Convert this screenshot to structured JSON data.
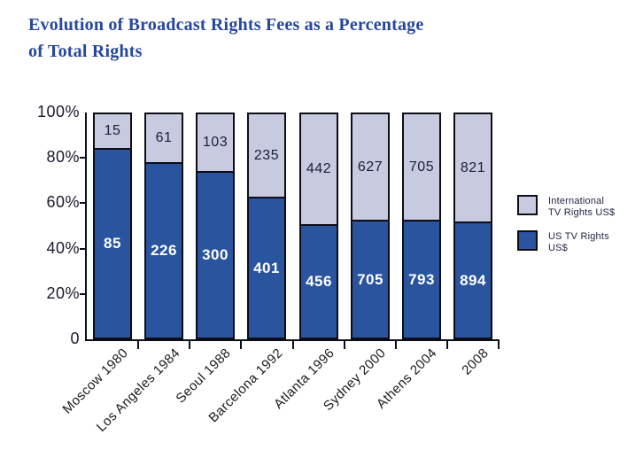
{
  "page": {
    "title_lines": [
      "Evolution of Broadcast Rights Fees as a Percentage",
      "of Total Rights"
    ],
    "title_color": "#27479e",
    "background_color": "#ffffff"
  },
  "chart_data": {
    "type": "bar",
    "variant": "100-percent-stacked-column",
    "title": "Evolution of Broadcast Rights Fees as a Percentage of Total Rights",
    "categories": [
      "Moscow 1980",
      "Los Angeles 1984",
      "Seoul 1988",
      "Barcelona 1992",
      "Atlanta 1996",
      "Sydney 2000",
      "Athens 2004",
      "2008"
    ],
    "series": [
      {
        "name": "US TV Rights US$",
        "color": "#2a549e",
        "label_color": "#ffffff",
        "values": [
          85,
          226,
          300,
          401,
          456,
          705,
          793,
          894
        ]
      },
      {
        "name": "International TV Rights US$",
        "color": "#c8cbe0",
        "label_color": "#1c1d38",
        "values": [
          15,
          61,
          103,
          235,
          442,
          627,
          705,
          821
        ]
      }
    ],
    "stack_order_top_to_bottom": [
      "International TV Rights US$",
      "US TV Rights US$"
    ],
    "y_axis": {
      "min": 0,
      "max": 100,
      "unit": "%",
      "tick_labels": [
        "100%",
        "80%",
        "60%",
        "40%",
        "20%",
        "0"
      ]
    },
    "x_axis": {
      "label_rotation_deg": 45
    },
    "grid": false,
    "legend_position": "right",
    "axis_color": "#0d0d18"
  },
  "legend": {
    "items": [
      {
        "lines": [
          "International",
          "TV Rights US$"
        ],
        "swatch_color": "#c8cbe0"
      },
      {
        "lines": [
          "US TV Rights",
          "US$"
        ],
        "swatch_color": "#2a549e"
      }
    ]
  }
}
